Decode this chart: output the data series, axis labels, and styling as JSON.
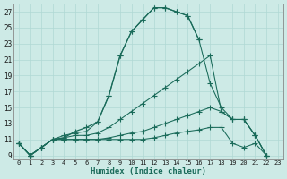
{
  "xlabel": "Humidex (Indice chaleur)",
  "x_values": [
    0,
    1,
    2,
    3,
    4,
    5,
    6,
    7,
    8,
    9,
    10,
    11,
    12,
    13,
    14,
    15,
    16,
    17,
    18,
    19,
    20,
    21,
    22,
    23
  ],
  "series": [
    [
      10.5,
      9.0,
      10.0,
      11.0,
      11.2,
      12.0,
      12.5,
      13.2,
      16.5,
      21.5,
      24.5,
      26.0,
      27.5,
      27.5,
      27.0,
      26.5,
      23.5,
      null,
      null,
      null,
      null,
      null,
      null,
      null
    ],
    [
      10.5,
      9.0,
      10.0,
      11.0,
      11.5,
      11.8,
      12.0,
      13.2,
      16.5,
      21.5,
      24.5,
      26.0,
      27.5,
      27.5,
      27.0,
      26.5,
      23.5,
      18.0,
      15.0,
      13.5,
      13.5,
      11.5,
      9.0,
      null
    ],
    [
      10.5,
      9.0,
      10.0,
      11.0,
      11.2,
      11.5,
      11.5,
      11.8,
      12.5,
      13.5,
      14.5,
      15.5,
      16.5,
      17.5,
      18.5,
      19.5,
      20.5,
      21.5,
      14.5,
      13.5,
      13.5,
      11.5,
      9.0,
      null
    ],
    [
      10.5,
      9.0,
      10.0,
      11.0,
      11.0,
      11.0,
      11.0,
      11.0,
      11.2,
      11.5,
      11.8,
      12.0,
      12.5,
      13.0,
      13.5,
      14.0,
      14.5,
      15.0,
      14.5,
      13.5,
      13.5,
      11.5,
      9.0,
      null
    ],
    [
      10.5,
      9.0,
      10.0,
      11.0,
      11.0,
      11.0,
      11.0,
      11.0,
      11.0,
      11.0,
      11.0,
      11.0,
      11.2,
      11.5,
      11.8,
      12.0,
      12.2,
      12.5,
      12.5,
      10.5,
      10.0,
      10.5,
      9.0,
      null
    ]
  ],
  "line_color": "#1a6b5a",
  "bg_color": "#cdeae6",
  "grid_color": "#b0d8d4",
  "ylim": [
    8.5,
    28
  ],
  "yticks": [
    9,
    11,
    13,
    15,
    17,
    19,
    21,
    23,
    25,
    27
  ],
  "xlim": [
    -0.5,
    23.5
  ],
  "marker": "+",
  "markersize": 4,
  "linewidth": 0.9
}
